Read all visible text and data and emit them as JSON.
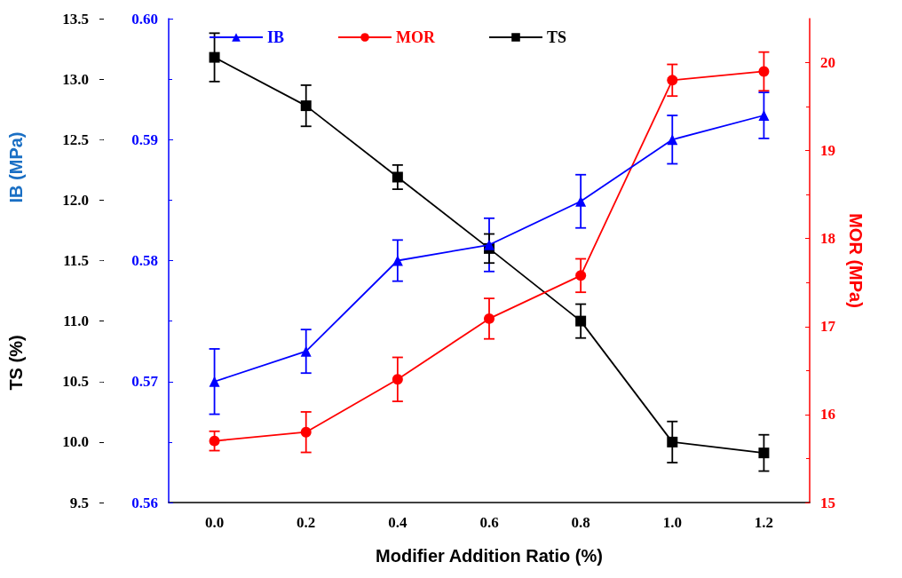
{
  "chart_data": {
    "type": "line",
    "xlabel": "Modifier Addition Ratio (%)",
    "ylabel": "TS (%)",
    "y2label": "MOR (MPa)",
    "y3label": "IB (MPa)",
    "categories": [
      "0.0",
      "0.2",
      "0.4",
      "0.6",
      "0.8",
      "1.0",
      "1.2"
    ],
    "ylim": [
      9.5,
      13.5
    ],
    "yticks": [
      {
        "value": 9.5,
        "label": "9.5"
      },
      {
        "value": 10,
        "label": "10.0"
      },
      {
        "value": 10.5,
        "label": "10.5"
      },
      {
        "value": 11,
        "label": "11.0"
      },
      {
        "value": 11.5,
        "label": "11.5"
      },
      {
        "value": 12,
        "label": "12.0"
      },
      {
        "value": 12.5,
        "label": "12.5"
      },
      {
        "value": 13,
        "label": "13.0"
      },
      {
        "value": 13.5,
        "label": "13.5"
      }
    ],
    "y3lim": [
      0.56,
      0.6
    ],
    "y3ticks": [
      {
        "value": 0.56,
        "label": "0.56"
      },
      {
        "value": 0.57,
        "label": "0.57"
      },
      {
        "value": 0.58,
        "label": "0.58"
      },
      {
        "value": 0.59,
        "label": "0.59"
      },
      {
        "value": 0.6,
        "label": "0.60"
      }
    ],
    "y2lim": [
      15,
      20.5
    ],
    "y2ticks": [
      15,
      16,
      17,
      18,
      19,
      20
    ],
    "series": [
      {
        "name": "IB",
        "color": "#0000ff",
        "axis": "y3",
        "marker": "triangle",
        "values": [
          0.57,
          0.5725,
          0.58,
          0.5813,
          0.5849,
          0.59,
          0.592
        ],
        "errors": [
          0.0027,
          0.0018,
          0.0017,
          0.0022,
          0.0022,
          0.002,
          0.0019
        ]
      },
      {
        "name": "MOR",
        "color": "#ff0000",
        "axis": "y2",
        "marker": "circle",
        "values": [
          15.7,
          15.8,
          16.4,
          17.09,
          17.58,
          19.8,
          19.9
        ],
        "errors": [
          0.11,
          0.23,
          0.25,
          0.23,
          0.19,
          0.18,
          0.22
        ]
      },
      {
        "name": "TS",
        "color": "#000000",
        "axis": "y",
        "marker": "square",
        "values": [
          13.18,
          12.78,
          12.19,
          11.6,
          11.0,
          10.0,
          9.91
        ],
        "errors": [
          0.2,
          0.17,
          0.1,
          0.12,
          0.14,
          0.17,
          0.15
        ]
      }
    ],
    "legend": "top",
    "grid": false,
    "line_style": "solid"
  }
}
